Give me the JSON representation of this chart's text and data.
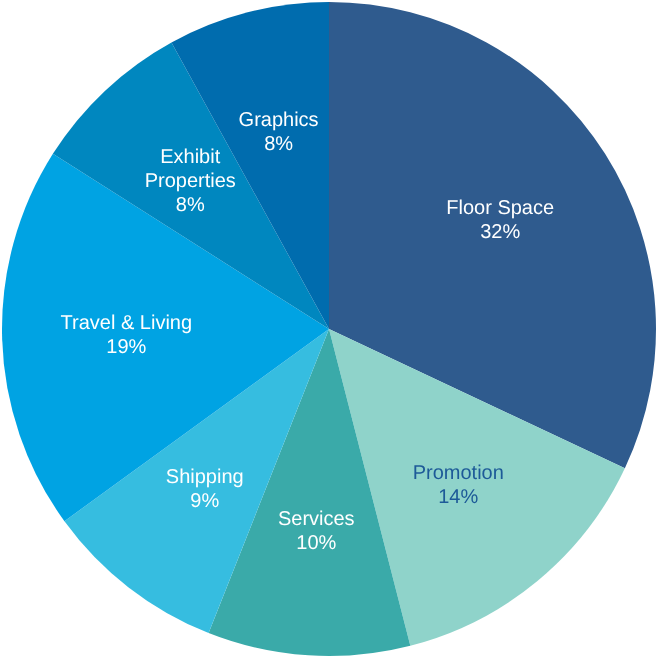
{
  "chart_data": {
    "type": "pie",
    "categories": [
      "Floor Space",
      "Promotion",
      "Services",
      "Shipping",
      "Travel & Living",
      "Exhibit Properties",
      "Graphics"
    ],
    "values": [
      32,
      14,
      10,
      9,
      19,
      8,
      8
    ],
    "colors": [
      "#2f5b8e",
      "#8fd3ca",
      "#3aaaa9",
      "#36bde0",
      "#00a3e3",
      "#0087bf",
      "#006cae"
    ],
    "value_labels": [
      "32%",
      "14%",
      "10%",
      "9%",
      "19%",
      "8%",
      "8%"
    ]
  }
}
